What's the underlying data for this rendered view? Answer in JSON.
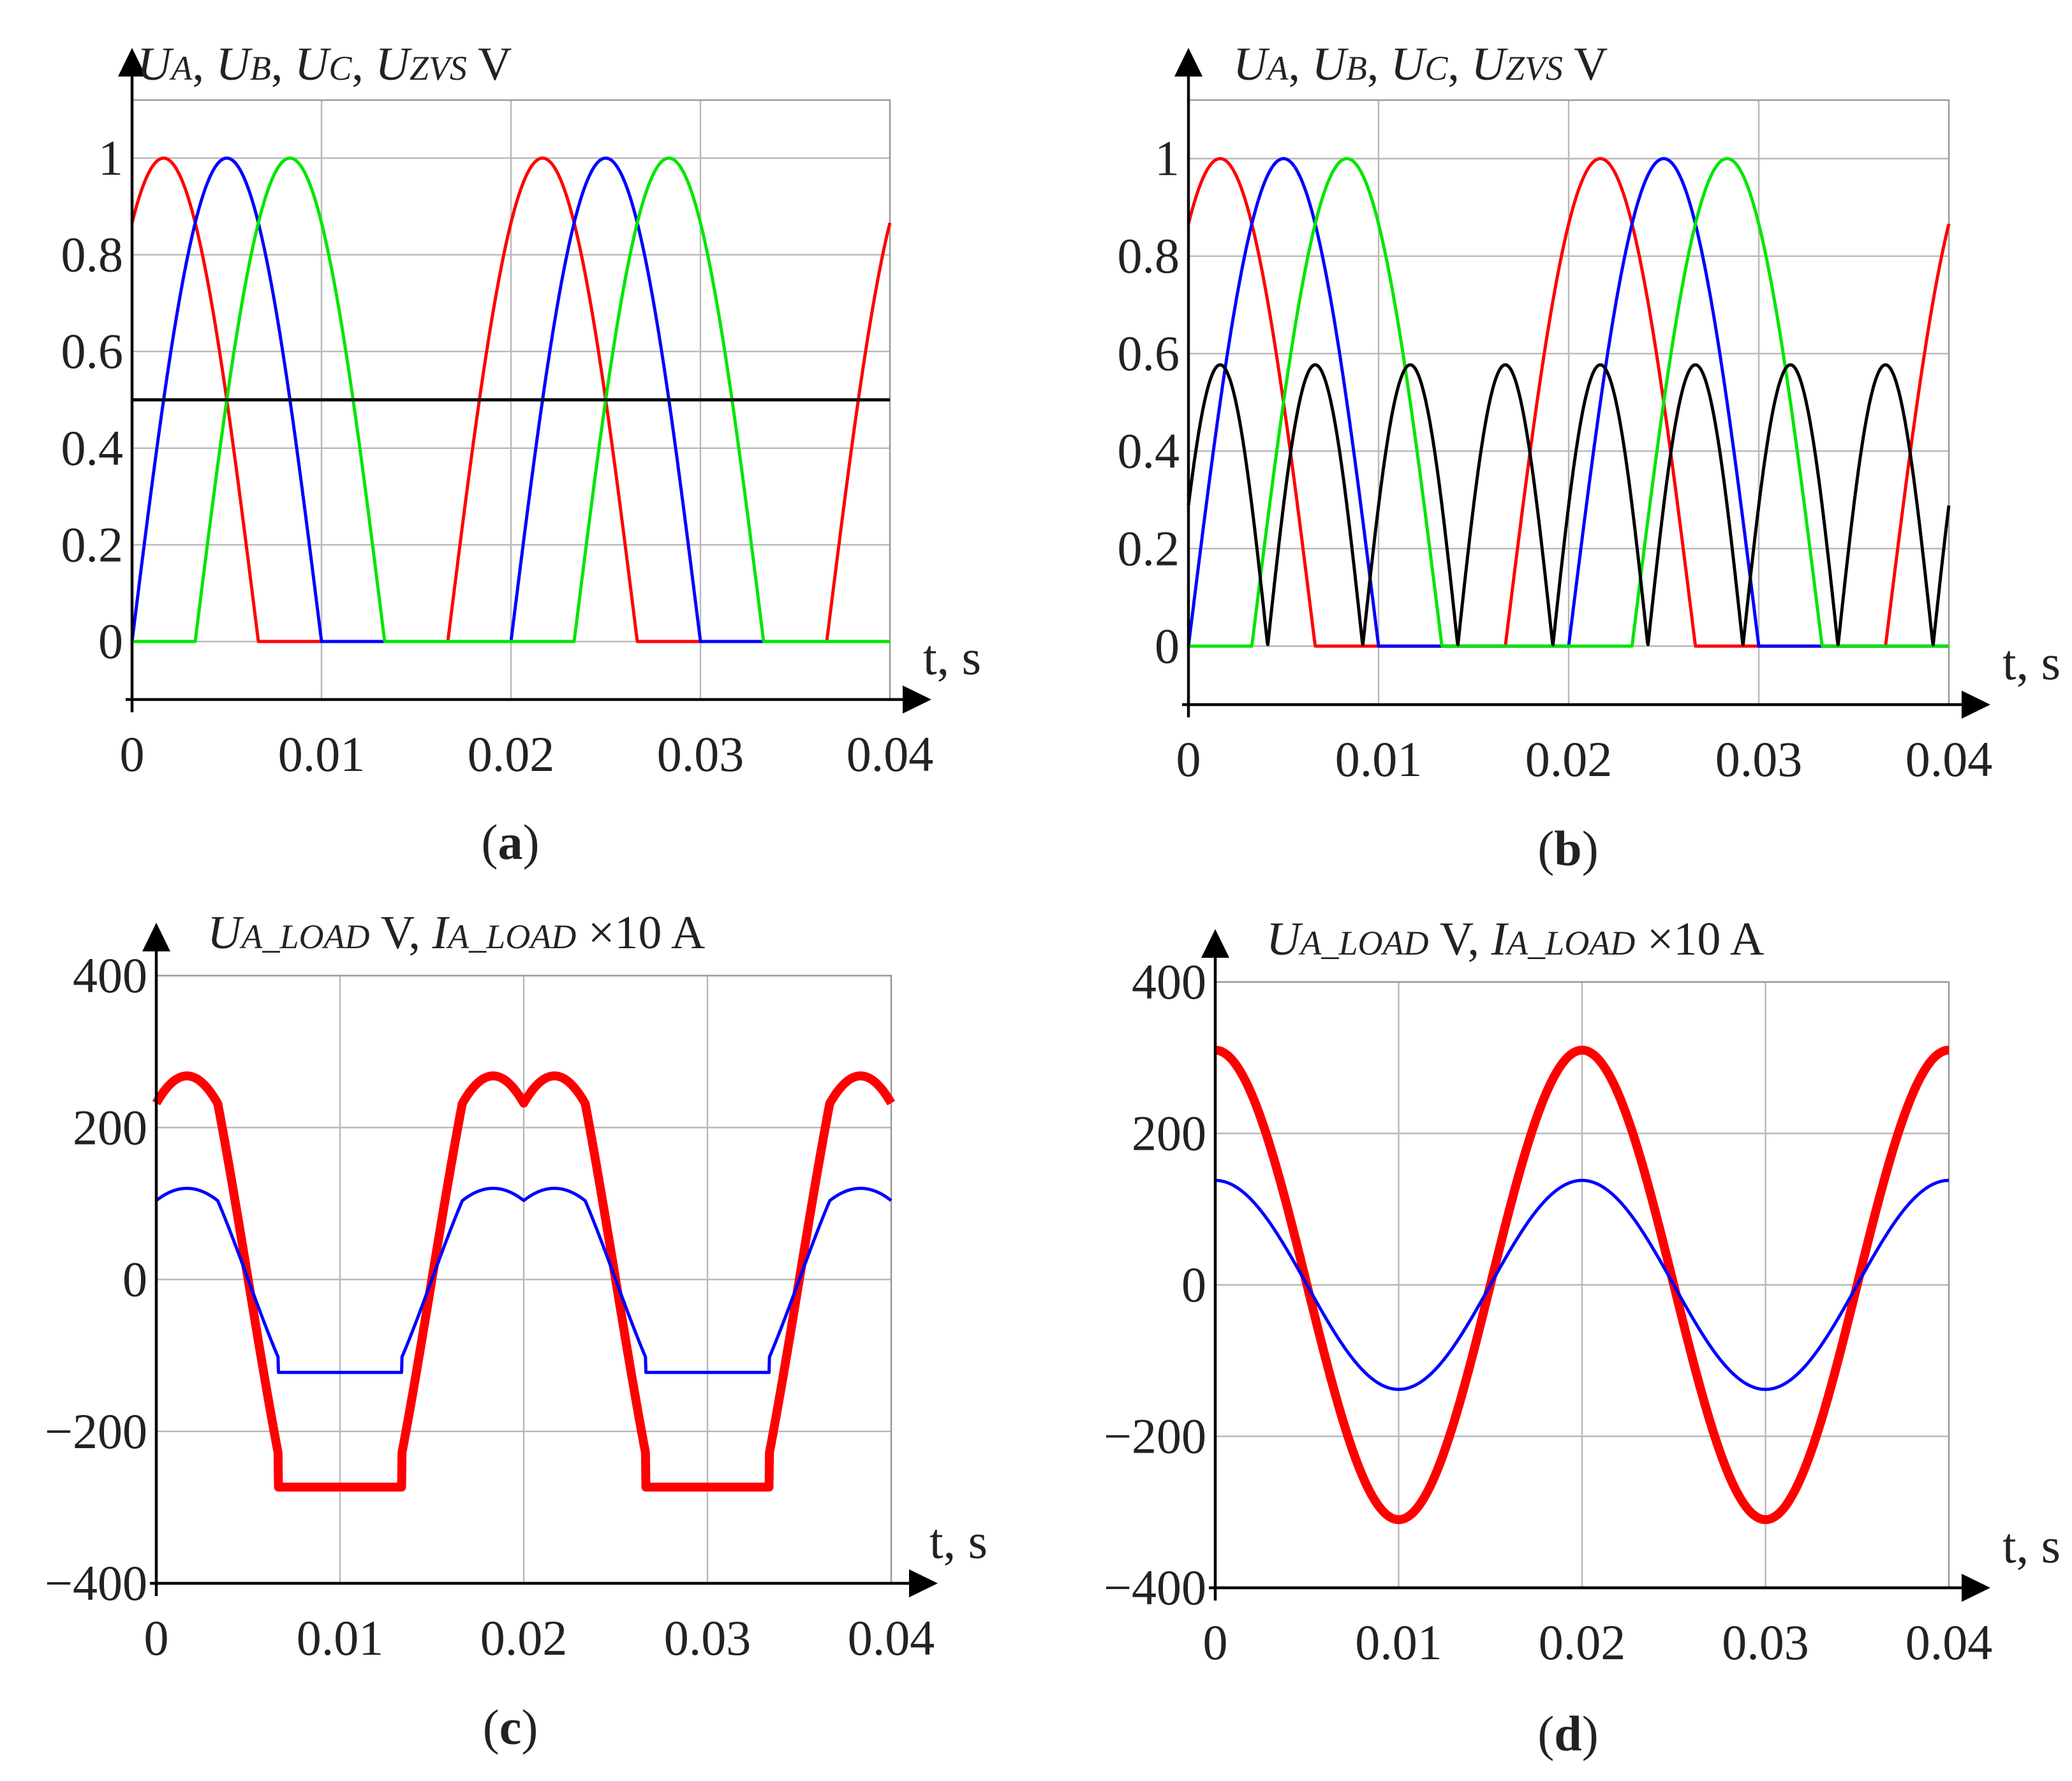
{
  "chart_data": [
    {
      "id": "a",
      "type": "line",
      "panel_label": "a",
      "title": {
        "parts": [
          {
            "t": "U",
            "s": "it"
          },
          {
            "t": "A",
            "s": "sub"
          },
          {
            "t": ", ",
            "s": "n"
          },
          {
            "t": "U",
            "s": "it"
          },
          {
            "t": "B",
            "s": "sub"
          },
          {
            "t": ", ",
            "s": "n"
          },
          {
            "t": "U",
            "s": "it"
          },
          {
            "t": "C",
            "s": "sub"
          },
          {
            "t": ", ",
            "s": "n"
          },
          {
            "t": "U",
            "s": "it"
          },
          {
            "t": "ZVS",
            "s": "sub"
          },
          {
            "t": " V",
            "s": "n"
          }
        ]
      },
      "xlabel": "t, s",
      "xlim": [
        0,
        0.04
      ],
      "ylim": [
        -0.12,
        1.12
      ],
      "xticks": [
        0,
        0.01,
        0.02,
        0.03,
        0.04
      ],
      "xtick_labels": [
        "0",
        "0.01",
        "0.02",
        "0.03",
        "0.04"
      ],
      "yticks": [
        0,
        0.2,
        0.4,
        0.6,
        0.8,
        1
      ],
      "ytick_labels": [
        "0",
        "0.2",
        "0.4",
        "0.6",
        "0.8",
        "1"
      ],
      "grid": true,
      "period_s": 0.02,
      "series": [
        {
          "name": "U_A",
          "color": "#ff0000",
          "func": "clipped_rectified_sine",
          "phase_deg": 60
        },
        {
          "name": "U_B",
          "color": "#0000ff",
          "func": "clipped_rectified_sine",
          "phase_deg": 0
        },
        {
          "name": "U_C",
          "color": "#00e600",
          "func": "clipped_rectified_sine",
          "phase_deg": -60
        },
        {
          "name": "U_ZVS",
          "color": "#000000",
          "func": "constant",
          "value": 0.5
        }
      ]
    },
    {
      "id": "b",
      "type": "line",
      "panel_label": "b",
      "title": {
        "parts": [
          {
            "t": "U",
            "s": "it"
          },
          {
            "t": "A",
            "s": "sub"
          },
          {
            "t": ", ",
            "s": "n"
          },
          {
            "t": "U",
            "s": "it"
          },
          {
            "t": "B",
            "s": "sub"
          },
          {
            "t": ", ",
            "s": "n"
          },
          {
            "t": "U",
            "s": "it"
          },
          {
            "t": "C",
            "s": "sub"
          },
          {
            "t": ", ",
            "s": "n"
          },
          {
            "t": "U",
            "s": "it"
          },
          {
            "t": "ZVS",
            "s": "sub"
          },
          {
            "t": " V",
            "s": "n"
          }
        ]
      },
      "xlabel": "t, s",
      "xlim": [
        0,
        0.04
      ],
      "ylim": [
        -0.12,
        1.12
      ],
      "xticks": [
        0,
        0.01,
        0.02,
        0.03,
        0.04
      ],
      "xtick_labels": [
        "0",
        "0.01",
        "0.02",
        "0.03",
        "0.04"
      ],
      "yticks": [
        0,
        0.2,
        0.4,
        0.6,
        0.8,
        1
      ],
      "ytick_labels": [
        "0",
        "0.2",
        "0.4",
        "0.6",
        "0.8",
        "1"
      ],
      "grid": true,
      "period_s": 0.02,
      "series": [
        {
          "name": "U_A",
          "color": "#ff0000",
          "func": "clipped_rectified_sine",
          "phase_deg": 60
        },
        {
          "name": "U_B",
          "color": "#0000ff",
          "func": "clipped_rectified_sine",
          "phase_deg": 0
        },
        {
          "name": "U_C",
          "color": "#00e600",
          "func": "clipped_rectified_sine",
          "phase_deg": -60
        },
        {
          "name": "U_ZVS",
          "color": "#000000",
          "func": "rectified_sine",
          "amplitude": 0.577,
          "phase_deg": 30
        }
      ]
    },
    {
      "id": "c",
      "type": "line",
      "panel_label": "c",
      "title": {
        "parts": [
          {
            "t": "U",
            "s": "it"
          },
          {
            "t": "A_LOAD",
            "s": "sub"
          },
          {
            "t": " V, ",
            "s": "n"
          },
          {
            "t": "I",
            "s": "it"
          },
          {
            "t": "A_LOAD",
            "s": "sub"
          },
          {
            "t": " ×10 A",
            "s": "n"
          }
        ]
      },
      "xlabel": "t, s",
      "xlim": [
        0,
        0.04
      ],
      "ylim": [
        -400,
        400
      ],
      "xticks": [
        0,
        0.01,
        0.02,
        0.03,
        0.04
      ],
      "xtick_labels": [
        "0",
        "0.01",
        "0.02",
        "0.03",
        "0.04"
      ],
      "yticks": [
        -400,
        -200,
        0,
        200,
        400
      ],
      "ytick_labels": [
        "−400",
        "−200",
        "0",
        "200",
        "400"
      ],
      "grid": true,
      "period_s": 0.02,
      "series": [
        {
          "name": "U_A_LOAD",
          "color": "#ff0000",
          "func": "load_voltage_clipped",
          "scale": 268,
          "ripple": 14
        },
        {
          "name": "I_A_LOAD x10",
          "color": "#0000ff",
          "func": "load_voltage_clipped",
          "scale": 120,
          "ripple": 0
        }
      ]
    },
    {
      "id": "d",
      "type": "line",
      "panel_label": "d",
      "title": {
        "parts": [
          {
            "t": "U",
            "s": "it"
          },
          {
            "t": "A_LOAD",
            "s": "sub"
          },
          {
            "t": " V, ",
            "s": "n"
          },
          {
            "t": "I",
            "s": "it"
          },
          {
            "t": "A_LOAD",
            "s": "sub"
          },
          {
            "t": " ×10 A",
            "s": "n"
          }
        ]
      },
      "xlabel": "t, s",
      "xlim": [
        0,
        0.04
      ],
      "ylim": [
        -400,
        400
      ],
      "xticks": [
        0,
        0.01,
        0.02,
        0.03,
        0.04
      ],
      "xtick_labels": [
        "0",
        "0.01",
        "0.02",
        "0.03",
        "0.04"
      ],
      "yticks": [
        -400,
        -200,
        0,
        200,
        400
      ],
      "ytick_labels": [
        "−400",
        "−200",
        "0",
        "200",
        "400"
      ],
      "grid": true,
      "period_s": 0.02,
      "series": [
        {
          "name": "U_A_LOAD",
          "color": "#ff0000",
          "func": "cosine",
          "amplitude": 310,
          "ripple": 14
        },
        {
          "name": "I_A_LOAD x10",
          "color": "#0000ff",
          "func": "cosine",
          "amplitude": 138,
          "ripple": 0
        }
      ]
    }
  ]
}
